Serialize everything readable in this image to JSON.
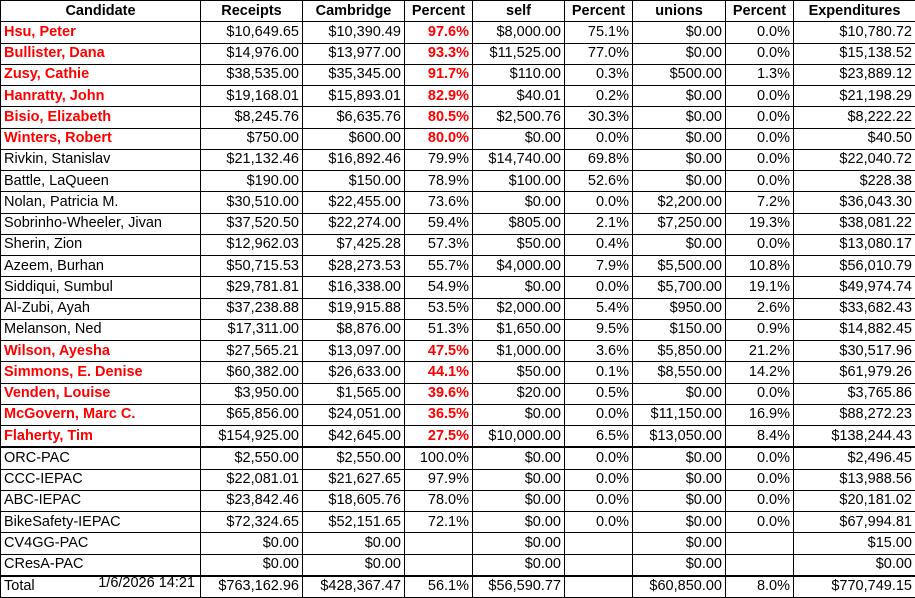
{
  "headers": [
    "Candidate",
    "Receipts",
    "Cambridge",
    "Percent",
    "self",
    "Percent",
    "unions",
    "Percent",
    "Expenditures"
  ],
  "rows": [
    {
      "name": "Hsu, Peter",
      "receipts": "$10,649.65",
      "cambridge": "$10,390.49",
      "pct_cambridge": "97.6%",
      "self": "$8,000.00",
      "pct_self": "75.1%",
      "unions": "$0.00",
      "pct_unions": "0.0%",
      "expenditures": "$10,780.72",
      "highlight": true
    },
    {
      "name": "Bullister, Dana",
      "receipts": "$14,976.00",
      "cambridge": "$13,977.00",
      "pct_cambridge": "93.3%",
      "self": "$11,525.00",
      "pct_self": "77.0%",
      "unions": "$0.00",
      "pct_unions": "0.0%",
      "expenditures": "$15,138.52",
      "highlight": true
    },
    {
      "name": "Zusy, Cathie",
      "receipts": "$38,535.00",
      "cambridge": "$35,345.00",
      "pct_cambridge": "91.7%",
      "self": "$110.00",
      "pct_self": "0.3%",
      "unions": "$500.00",
      "pct_unions": "1.3%",
      "expenditures": "$23,889.12",
      "highlight": true
    },
    {
      "name": "Hanratty, John",
      "receipts": "$19,168.01",
      "cambridge": "$15,893.01",
      "pct_cambridge": "82.9%",
      "self": "$40.01",
      "pct_self": "0.2%",
      "unions": "$0.00",
      "pct_unions": "0.0%",
      "expenditures": "$21,198.29",
      "highlight": true
    },
    {
      "name": "Bisio, Elizabeth",
      "receipts": "$8,245.76",
      "cambridge": "$6,635.76",
      "pct_cambridge": "80.5%",
      "self": "$2,500.76",
      "pct_self": "30.3%",
      "unions": "$0.00",
      "pct_unions": "0.0%",
      "expenditures": "$8,222.22",
      "highlight": true
    },
    {
      "name": "Winters, Robert",
      "receipts": "$750.00",
      "cambridge": "$600.00",
      "pct_cambridge": "80.0%",
      "self": "$0.00",
      "pct_self": "0.0%",
      "unions": "$0.00",
      "pct_unions": "0.0%",
      "expenditures": "$40.50",
      "highlight": true
    },
    {
      "name": "Rivkin, Stanislav",
      "receipts": "$21,132.46",
      "cambridge": "$16,892.46",
      "pct_cambridge": "79.9%",
      "self": "$14,740.00",
      "pct_self": "69.8%",
      "unions": "$0.00",
      "pct_unions": "0.0%",
      "expenditures": "$22,040.72",
      "highlight": false
    },
    {
      "name": "Battle, LaQueen",
      "receipts": "$190.00",
      "cambridge": "$150.00",
      "pct_cambridge": "78.9%",
      "self": "$100.00",
      "pct_self": "52.6%",
      "unions": "$0.00",
      "pct_unions": "0.0%",
      "expenditures": "$228.38",
      "highlight": false
    },
    {
      "name": "Nolan, Patricia M.",
      "receipts": "$30,510.00",
      "cambridge": "$22,455.00",
      "pct_cambridge": "73.6%",
      "self": "$0.00",
      "pct_self": "0.0%",
      "unions": "$2,200.00",
      "pct_unions": "7.2%",
      "expenditures": "$36,043.30",
      "highlight": false
    },
    {
      "name": "Sobrinho-Wheeler, Jivan",
      "receipts": "$37,520.50",
      "cambridge": "$22,274.00",
      "pct_cambridge": "59.4%",
      "self": "$805.00",
      "pct_self": "2.1%",
      "unions": "$7,250.00",
      "pct_unions": "19.3%",
      "expenditures": "$38,081.22",
      "highlight": false
    },
    {
      "name": "Sherin, Zion",
      "receipts": "$12,962.03",
      "cambridge": "$7,425.28",
      "pct_cambridge": "57.3%",
      "self": "$50.00",
      "pct_self": "0.4%",
      "unions": "$0.00",
      "pct_unions": "0.0%",
      "expenditures": "$13,080.17",
      "highlight": false
    },
    {
      "name": "Azeem, Burhan",
      "receipts": "$50,715.53",
      "cambridge": "$28,273.53",
      "pct_cambridge": "55.7%",
      "self": "$4,000.00",
      "pct_self": "7.9%",
      "unions": "$5,500.00",
      "pct_unions": "10.8%",
      "expenditures": "$56,010.79",
      "highlight": false
    },
    {
      "name": "Siddiqui, Sumbul",
      "receipts": "$29,781.81",
      "cambridge": "$16,338.00",
      "pct_cambridge": "54.9%",
      "self": "$0.00",
      "pct_self": "0.0%",
      "unions": "$5,700.00",
      "pct_unions": "19.1%",
      "expenditures": "$49,974.74",
      "highlight": false
    },
    {
      "name": "Al-Zubi, Ayah",
      "receipts": "$37,238.88",
      "cambridge": "$19,915.88",
      "pct_cambridge": "53.5%",
      "self": "$2,000.00",
      "pct_self": "5.4%",
      "unions": "$950.00",
      "pct_unions": "2.6%",
      "expenditures": "$33,682.43",
      "highlight": false
    },
    {
      "name": "Melanson, Ned",
      "receipts": "$17,311.00",
      "cambridge": "$8,876.00",
      "pct_cambridge": "51.3%",
      "self": "$1,650.00",
      "pct_self": "9.5%",
      "unions": "$150.00",
      "pct_unions": "0.9%",
      "expenditures": "$14,882.45",
      "highlight": false
    },
    {
      "name": "Wilson, Ayesha",
      "receipts": "$27,565.21",
      "cambridge": "$13,097.00",
      "pct_cambridge": "47.5%",
      "self": "$1,000.00",
      "pct_self": "3.6%",
      "unions": "$5,850.00",
      "pct_unions": "21.2%",
      "expenditures": "$30,517.96",
      "highlight": true
    },
    {
      "name": "Simmons, E. Denise",
      "receipts": "$60,382.00",
      "cambridge": "$26,633.00",
      "pct_cambridge": "44.1%",
      "self": "$50.00",
      "pct_self": "0.1%",
      "unions": "$8,550.00",
      "pct_unions": "14.2%",
      "expenditures": "$61,979.26",
      "highlight": true
    },
    {
      "name": "Venden, Louise",
      "receipts": "$3,950.00",
      "cambridge": "$1,565.00",
      "pct_cambridge": "39.6%",
      "self": "$20.00",
      "pct_self": "0.5%",
      "unions": "$0.00",
      "pct_unions": "0.0%",
      "expenditures": "$3,765.86",
      "highlight": true
    },
    {
      "name": "McGovern, Marc C.",
      "receipts": "$65,856.00",
      "cambridge": "$24,051.00",
      "pct_cambridge": "36.5%",
      "self": "$0.00",
      "pct_self": "0.0%",
      "unions": "$11,150.00",
      "pct_unions": "16.9%",
      "expenditures": "$88,272.23",
      "highlight": true
    },
    {
      "name": "Flaherty, Tim",
      "receipts": "$154,925.00",
      "cambridge": "$42,645.00",
      "pct_cambridge": "27.5%",
      "self": "$10,000.00",
      "pct_self": "6.5%",
      "unions": "$13,050.00",
      "pct_unions": "8.4%",
      "expenditures": "$138,244.43",
      "highlight": true
    },
    {
      "name": "ORC-PAC",
      "receipts": "$2,550.00",
      "cambridge": "$2,550.00",
      "pct_cambridge": "100.0%",
      "self": "$0.00",
      "pct_self": "0.0%",
      "unions": "$0.00",
      "pct_unions": "0.0%",
      "expenditures": "$2,496.45",
      "highlight": false
    },
    {
      "name": "CCC-IEPAC",
      "receipts": "$22,081.01",
      "cambridge": "$21,627.65",
      "pct_cambridge": "97.9%",
      "self": "$0.00",
      "pct_self": "0.0%",
      "unions": "$0.00",
      "pct_unions": "0.0%",
      "expenditures": "$13,988.56",
      "highlight": false
    },
    {
      "name": "ABC-IEPAC",
      "receipts": "$23,842.46",
      "cambridge": "$18,605.76",
      "pct_cambridge": "78.0%",
      "self": "$0.00",
      "pct_self": "0.0%",
      "unions": "$0.00",
      "pct_unions": "0.0%",
      "expenditures": "$20,181.02",
      "highlight": false
    },
    {
      "name": "BikeSafety-IEPAC",
      "receipts": "$72,324.65",
      "cambridge": "$52,151.65",
      "pct_cambridge": "72.1%",
      "self": "$0.00",
      "pct_self": "0.0%",
      "unions": "$0.00",
      "pct_unions": "0.0%",
      "expenditures": "$67,994.81",
      "highlight": false
    },
    {
      "name": "CV4GG-PAC",
      "receipts": "$0.00",
      "cambridge": "$0.00",
      "pct_cambridge": "",
      "self": "$0.00",
      "pct_self": "",
      "unions": "$0.00",
      "pct_unions": "",
      "expenditures": "$15.00",
      "highlight": false
    },
    {
      "name": "CResA-PAC",
      "receipts": "$0.00",
      "cambridge": "$0.00",
      "pct_cambridge": "",
      "self": "$0.00",
      "pct_self": "",
      "unions": "$0.00",
      "pct_unions": "",
      "expenditures": "$0.00",
      "highlight": false
    }
  ],
  "total": {
    "name": "Total",
    "receipts": "$763,162.96",
    "cambridge": "$428,367.47",
    "pct_cambridge": "56.1%",
    "self": "$56,590.77",
    "pct_self": "",
    "unions": "$60,850.00",
    "pct_unions": "8.0%",
    "expenditures": "$770,749.15"
  },
  "timestamp": "1/6/2026 14:21",
  "colors": {
    "highlight": "#ff0000",
    "text": "#000000",
    "background": "#ffffff"
  }
}
